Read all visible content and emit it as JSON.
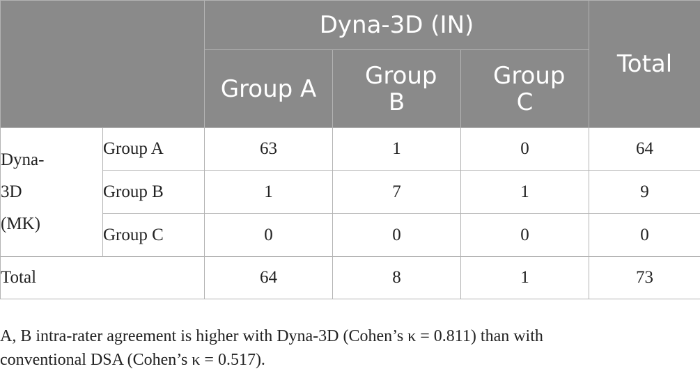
{
  "table": {
    "col_group_header": "Dyna-3D (IN)",
    "total_header": "Total",
    "col_headers": [
      "Group A",
      "Group B",
      "Group C"
    ],
    "row_group_label_lines": [
      "Dyna-",
      "3D",
      "(MK)"
    ],
    "rows": [
      {
        "label": "Group A",
        "values": [
          "63",
          "1",
          "0"
        ],
        "total": "64"
      },
      {
        "label": "Group B",
        "values": [
          "1",
          "7",
          "1"
        ],
        "total": "9"
      },
      {
        "label": "Group C",
        "values": [
          "0",
          "0",
          "0"
        ],
        "total": "0"
      }
    ],
    "total_row": {
      "label": "Total",
      "values": [
        "64",
        "8",
        "1"
      ],
      "total": "73"
    }
  },
  "note": {
    "line1": "A, B intra-rater agreement is higher with Dyna-3D (Cohen’s κ = 0.811) than with",
    "line2": "conventional DSA (Cohen’s κ = 0.517)."
  }
}
